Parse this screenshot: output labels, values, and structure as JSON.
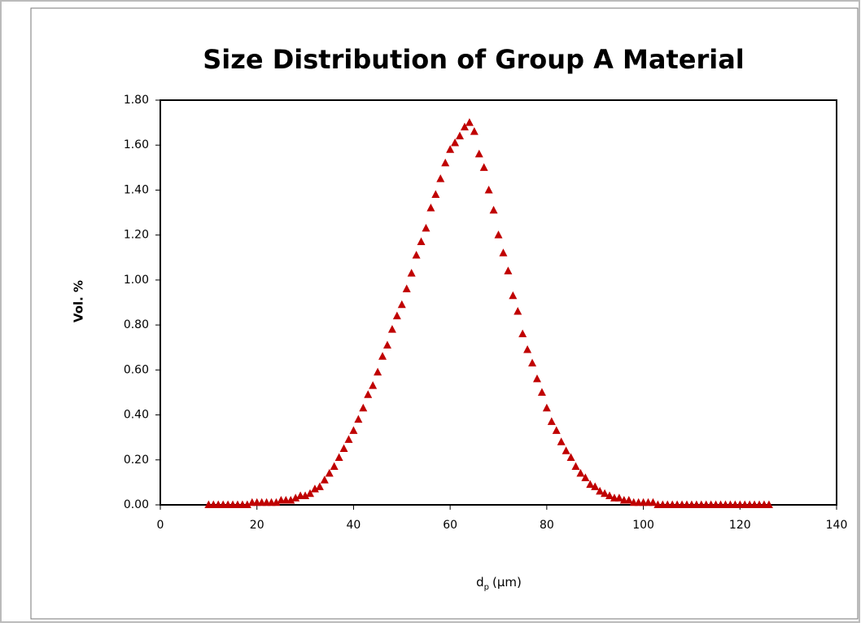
{
  "chart_data": {
    "type": "scatter",
    "title": "Size Distribution of Group A Material",
    "x_label": [
      "d",
      "p",
      "(µm)"
    ],
    "y_label": "Vol. %",
    "marker_color": "#c00000",
    "xlim": [
      0,
      140
    ],
    "xticks": [
      0,
      20,
      40,
      60,
      80,
      100,
      120,
      140
    ],
    "ylim": [
      0,
      1.8
    ],
    "yticks": [
      {
        "value": 0,
        "label": "0.00"
      },
      {
        "value": 0.2,
        "label": "0.20"
      },
      {
        "value": 0.4,
        "label": "0.40"
      },
      {
        "value": 0.6,
        "label": "0.60"
      },
      {
        "value": 0.8,
        "label": "0.80"
      },
      {
        "value": 1.0,
        "label": "1.00"
      },
      {
        "value": 1.2,
        "label": "1.20"
      },
      {
        "value": 1.4,
        "label": "1.40"
      },
      {
        "value": 1.6,
        "label": "1.60"
      },
      {
        "value": 1.8,
        "label": "1.80"
      }
    ],
    "x": [
      10,
      11,
      12,
      13,
      14,
      15,
      16,
      17,
      18,
      19,
      20,
      21,
      22,
      23,
      24,
      25,
      26,
      27,
      28,
      29,
      30,
      31,
      32,
      33,
      34,
      35,
      36,
      37,
      38,
      39,
      40,
      41,
      42,
      43,
      44,
      45,
      46,
      47,
      48,
      49,
      50,
      51,
      52,
      53,
      54,
      55,
      56,
      57,
      58,
      59,
      60,
      61,
      62,
      63,
      64,
      65,
      66,
      67,
      68,
      69,
      70,
      71,
      72,
      73,
      74,
      75,
      76,
      77,
      78,
      79,
      80,
      81,
      82,
      83,
      84,
      85,
      86,
      87,
      88,
      89,
      90,
      91,
      92,
      93,
      94,
      95,
      96,
      97,
      98,
      99,
      100,
      101,
      102,
      103,
      104,
      105,
      106,
      107,
      108,
      109,
      110,
      111,
      112,
      113,
      114,
      115,
      116,
      117,
      118,
      119,
      120,
      121,
      122,
      123,
      124,
      125,
      126
    ],
    "values": [
      0,
      0,
      0,
      0,
      0,
      0,
      0,
      0,
      0,
      0.01,
      0.01,
      0.01,
      0.01,
      0.01,
      0.01,
      0.02,
      0.02,
      0.02,
      0.03,
      0.04,
      0.04,
      0.05,
      0.07,
      0.08,
      0.11,
      0.14,
      0.17,
      0.21,
      0.25,
      0.29,
      0.33,
      0.38,
      0.43,
      0.49,
      0.53,
      0.59,
      0.66,
      0.71,
      0.78,
      0.84,
      0.89,
      0.96,
      1.03,
      1.11,
      1.17,
      1.23,
      1.32,
      1.38,
      1.45,
      1.52,
      1.58,
      1.61,
      1.64,
      1.68,
      1.7,
      1.66,
      1.56,
      1.5,
      1.4,
      1.31,
      1.2,
      1.12,
      1.04,
      0.93,
      0.86,
      0.76,
      0.69,
      0.63,
      0.56,
      0.5,
      0.43,
      0.37,
      0.33,
      0.28,
      0.24,
      0.21,
      0.17,
      0.14,
      0.12,
      0.09,
      0.08,
      0.06,
      0.05,
      0.04,
      0.03,
      0.03,
      0.02,
      0.02,
      0.01,
      0.01,
      0.01,
      0.01,
      0.01,
      0,
      0,
      0,
      0,
      0,
      0,
      0,
      0,
      0,
      0,
      0,
      0,
      0,
      0,
      0,
      0,
      0,
      0,
      0,
      0,
      0,
      0,
      0,
      0
    ]
  }
}
